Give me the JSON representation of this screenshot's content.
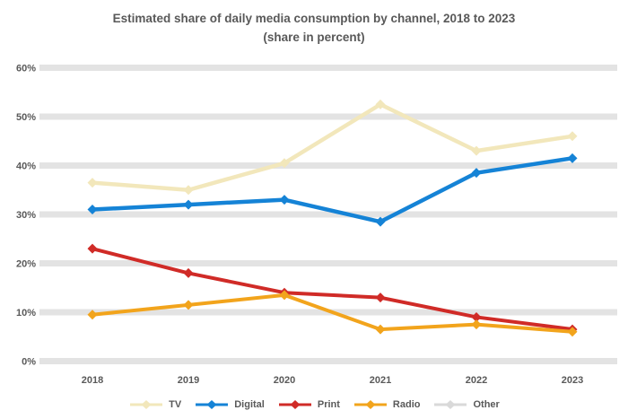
{
  "title": {
    "line1": "Estimated share of daily media consumption by channel, 2018 to 2023",
    "line2": "(share in percent)"
  },
  "chart_data": {
    "type": "line",
    "title": "Estimated share of daily media consumption by channel, 2018 to 2023",
    "subtitle": "(share in percent)",
    "categories": [
      "2018",
      "2019",
      "2020",
      "2021",
      "2022",
      "2023"
    ],
    "series": [
      {
        "name": "TV",
        "color": "#f2e7bb",
        "width": 4.5,
        "values": [
          36.5,
          35,
          40.5,
          52.5,
          43,
          46
        ]
      },
      {
        "name": "Digital",
        "color": "#1583d6",
        "width": 4.5,
        "values": [
          31,
          32,
          33,
          28.5,
          38.5,
          41.5
        ]
      },
      {
        "name": "Print",
        "color": "#d02b27",
        "width": 4,
        "values": [
          23,
          18,
          14,
          13,
          9,
          6.5
        ]
      },
      {
        "name": "Radio",
        "color": "#f2a41c",
        "width": 4,
        "values": [
          9.5,
          11.5,
          13.5,
          6.5,
          7.5,
          6
        ]
      },
      {
        "name": "Other",
        "color": "#d9d9d9",
        "width": 4,
        "values": []
      }
    ],
    "xlabel": "",
    "ylabel": "",
    "ylim": [
      0,
      60
    ],
    "ytick_step": 10,
    "ytick_labels": [
      "0%",
      "10%",
      "20%",
      "30%",
      "40%",
      "50%",
      "60%"
    ],
    "grid": "horizontal-bands",
    "grid_color": "#e3e3e3",
    "axis_text_color": "#595959",
    "legend_position": "bottom",
    "marker": "diamond"
  }
}
